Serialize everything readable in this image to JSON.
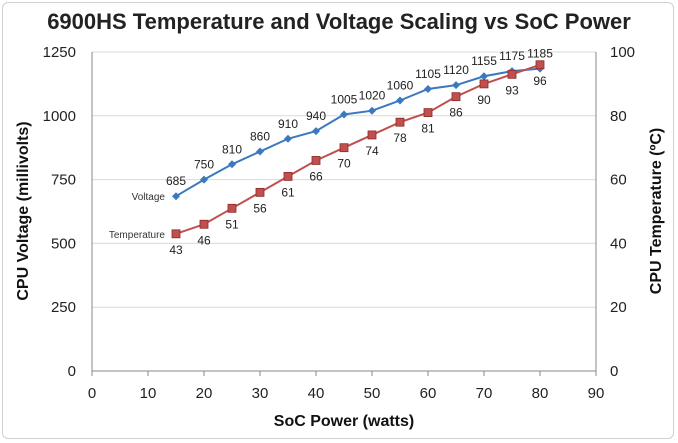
{
  "chart_data": {
    "type": "line",
    "title": "6900HS Temperature and Voltage Scaling vs SoC Power",
    "xlabel": "SoC Power (watts)",
    "ylabel": "CPU Voltage (millivolts)",
    "y2label": "CPU Temperature (ºC)",
    "xlim": [
      0,
      90
    ],
    "ylim": [
      0,
      1250
    ],
    "y2lim": [
      0,
      100
    ],
    "x_ticks": [
      "0",
      "10",
      "20",
      "30",
      "40",
      "50",
      "60",
      "70",
      "80",
      "90"
    ],
    "y_ticks": [
      "0",
      "250",
      "500",
      "750",
      "1000",
      "1250"
    ],
    "y2_ticks": [
      "0",
      "20",
      "40",
      "60",
      "80",
      "100"
    ],
    "grid": true,
    "x": [
      15,
      20,
      25,
      30,
      35,
      40,
      45,
      50,
      55,
      60,
      65,
      70,
      75,
      80
    ],
    "series": [
      {
        "name": "Voltage",
        "axis": "left",
        "color": "#3b79bf",
        "marker": "diamond",
        "values": [
          685,
          750,
          810,
          860,
          910,
          940,
          1005,
          1020,
          1060,
          1105,
          1120,
          1155,
          1175,
          1185
        ]
      },
      {
        "name": "Temperature",
        "axis": "right",
        "color": "#c0504d",
        "marker": "square",
        "values": [
          43,
          46,
          51,
          56,
          61,
          66,
          70,
          74,
          78,
          81,
          86,
          90,
          93,
          96
        ]
      }
    ]
  }
}
